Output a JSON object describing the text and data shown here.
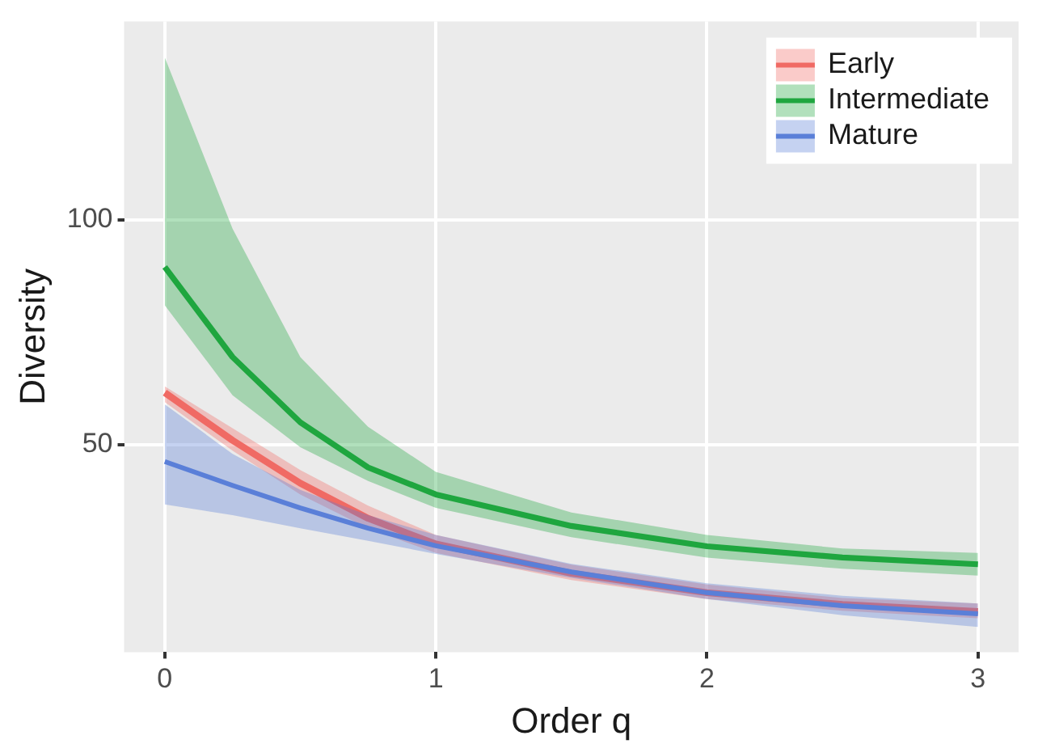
{
  "chart_data": {
    "type": "line",
    "xlabel": "Order q",
    "ylabel": "Diversity",
    "x": [
      0,
      0.25,
      0.5,
      0.75,
      1,
      1.5,
      2,
      2.5,
      3
    ],
    "xlim": [
      -0.15,
      3.15
    ],
    "xticks": [
      0,
      1,
      2,
      3
    ],
    "ylim": [
      4,
      144
    ],
    "yticks": [
      50,
      100
    ],
    "grid": true,
    "legend": "top right",
    "marker": "none",
    "line_style": "solid",
    "series": [
      {
        "name": "Early",
        "color": "#f06a64",
        "values": [
          61.6,
          51,
          41.5,
          33.7,
          28,
          21.5,
          17.2,
          14.6,
          13
        ],
        "lower": [
          59.5,
          48.7,
          39,
          31.5,
          26,
          20,
          15.8,
          13.2,
          11.5
        ],
        "upper": [
          63,
          53.7,
          44.4,
          36.5,
          30,
          23.4,
          19,
          16,
          14.8
        ]
      },
      {
        "name": "Intermediate",
        "color": "#1fa63f",
        "values": [
          89.5,
          69.5,
          55,
          45,
          39,
          32,
          27.5,
          25,
          23.5
        ],
        "lower": [
          81,
          61,
          49.5,
          42,
          36,
          29.5,
          25,
          22.5,
          21
        ],
        "upper": [
          136,
          98,
          69.5,
          54,
          44,
          35,
          30,
          27,
          26
        ]
      },
      {
        "name": "Mature",
        "color": "#5a7fd8",
        "values": [
          46.3,
          41,
          36,
          31.5,
          27.6,
          21.8,
          17.2,
          14.3,
          12.5
        ],
        "lower": [
          36.8,
          34.4,
          31.5,
          28.7,
          25.8,
          20.5,
          15.8,
          12.2,
          9.6
        ],
        "upper": [
          59,
          48,
          40,
          34.4,
          30,
          23.6,
          19.3,
          16.5,
          14.8
        ]
      }
    ]
  }
}
